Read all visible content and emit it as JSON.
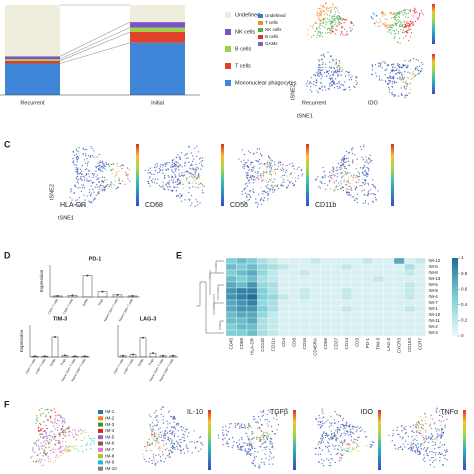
{
  "panel_a": {
    "type": "bar",
    "stacked": true,
    "categories": [
      "Recurrent",
      "Initial"
    ],
    "ylim": [
      0,
      100
    ],
    "series": [
      {
        "name": "Mononuclear phagocytes",
        "color": "#3f86d8",
        "values": [
          35,
          58
        ]
      },
      {
        "name": "T cells",
        "color": "#e0412b",
        "values": [
          3,
          12
        ]
      },
      {
        "name": "B cells",
        "color": "#9bd14a",
        "values": [
          2,
          5
        ]
      },
      {
        "name": "NK cells",
        "color": "#7b52c7",
        "values": [
          3,
          6
        ]
      },
      {
        "name": "Undefined",
        "color": "#efeedd",
        "values": [
          57,
          19
        ]
      }
    ]
  },
  "panel_b": {
    "legend": [
      {
        "name": "Undefined",
        "color": "#3a7fc4"
      },
      {
        "name": "T cells",
        "color": "#f08a2c"
      },
      {
        "name": "NK cells",
        "color": "#4dae4a"
      },
      {
        "name": "B cells",
        "color": "#d8322c"
      },
      {
        "name": "GAMs",
        "color": "#8a5cc2"
      }
    ],
    "plot_labels": [
      "Recurrent",
      "IDO"
    ],
    "x_axis": "tSNE1",
    "y_axis": "tSNE2"
  },
  "panel_c": {
    "label": "C",
    "plots": [
      "HLA-DR",
      "CD68",
      "CD56",
      "CD11b"
    ],
    "x_axis": "tSNE1",
    "y_axis": "tSNE2"
  },
  "panel_d": {
    "label": "D",
    "y_label": "Expression",
    "categories": [
      "CD4+ T cells",
      "CD8+ T cells",
      "GAMs",
      "Tregs",
      "Naive CD4+ T cells",
      "Naive CD8+ T cells"
    ],
    "charts": [
      {
        "title": "PD-1",
        "color": "#444444",
        "values": [
          2,
          3,
          40,
          10,
          4,
          2
        ],
        "ylim": [
          0,
          60
        ]
      },
      {
        "title": "TIM-3",
        "color": "#444444",
        "values": [
          1,
          1,
          25,
          2,
          1,
          1
        ],
        "ylim": [
          0,
          40
        ]
      },
      {
        "title": "LAG-3",
        "color": "#444444",
        "values": [
          1,
          2,
          15,
          3,
          1,
          1
        ],
        "ylim": [
          0,
          25
        ]
      }
    ]
  },
  "panel_e": {
    "label": "E",
    "columns": [
      "CD45",
      "CD68",
      "HLA-DR",
      "CD11b",
      "CD11c",
      "CD4",
      "CD8",
      "CD16",
      "CD45RA",
      "CD56",
      "CD27",
      "CD14",
      "CD3",
      "PD-1",
      "TIM-3",
      "LAG-3",
      "CXCR3",
      "CD163",
      "CCR7"
    ],
    "rows": [
      "rM-12",
      "rM-5",
      "rM-8",
      "rM-13",
      "rM-6",
      "rM-9",
      "rM-4",
      "rM-7",
      "rM-1",
      "rM-10",
      "rM-11",
      "rM-2",
      "rM-3"
    ],
    "values": [
      [
        0.5,
        0.6,
        0.5,
        0.3,
        0.2,
        0.1,
        0.1,
        0.1,
        0.2,
        0.1,
        0.1,
        0.1,
        0.1,
        0.2,
        0.1,
        0.1,
        0.7,
        0.1,
        0.2
      ],
      [
        0.6,
        0.5,
        0.6,
        0.4,
        0.3,
        0.2,
        0.1,
        0.1,
        0.1,
        0.1,
        0.1,
        0.2,
        0.1,
        0.1,
        0.1,
        0.1,
        0.1,
        0.3,
        0.1
      ],
      [
        0.5,
        0.6,
        0.7,
        0.4,
        0.2,
        0.1,
        0.1,
        0.2,
        0.1,
        0.1,
        0.1,
        0.1,
        0.1,
        0.1,
        0.1,
        0.1,
        0.1,
        0.2,
        0.1
      ],
      [
        0.6,
        0.5,
        0.6,
        0.3,
        0.2,
        0.1,
        0.1,
        0.1,
        0.1,
        0.1,
        0.1,
        0.1,
        0.1,
        0.1,
        0.2,
        0.1,
        0.1,
        0.1,
        0.1
      ],
      [
        0.7,
        0.6,
        0.8,
        0.4,
        0.3,
        0.1,
        0.1,
        0.1,
        0.1,
        0.1,
        0.1,
        0.1,
        0.1,
        0.1,
        0.1,
        0.1,
        0.1,
        0.2,
        0.1
      ],
      [
        0.8,
        0.9,
        0.9,
        0.5,
        0.3,
        0.1,
        0.1,
        0.2,
        0.1,
        0.1,
        0.1,
        0.2,
        0.1,
        0.1,
        0.1,
        0.1,
        0.1,
        0.2,
        0.1
      ],
      [
        0.8,
        0.9,
        1.0,
        0.5,
        0.4,
        0.2,
        0.1,
        0.2,
        0.1,
        0.1,
        0.1,
        0.2,
        0.1,
        0.1,
        0.1,
        0.1,
        0.1,
        0.2,
        0.1
      ],
      [
        0.7,
        0.8,
        0.9,
        0.4,
        0.3,
        0.1,
        0.1,
        0.1,
        0.1,
        0.1,
        0.1,
        0.1,
        0.1,
        0.1,
        0.1,
        0.1,
        0.1,
        0.1,
        0.1
      ],
      [
        0.7,
        0.8,
        0.8,
        0.5,
        0.3,
        0.1,
        0.1,
        0.1,
        0.1,
        0.1,
        0.1,
        0.2,
        0.1,
        0.1,
        0.1,
        0.1,
        0.1,
        0.2,
        0.1
      ],
      [
        0.6,
        0.7,
        0.7,
        0.4,
        0.2,
        0.1,
        0.1,
        0.1,
        0.1,
        0.1,
        0.1,
        0.1,
        0.1,
        0.1,
        0.1,
        0.1,
        0.1,
        0.1,
        0.1
      ],
      [
        0.6,
        0.6,
        0.7,
        0.3,
        0.2,
        0.1,
        0.1,
        0.1,
        0.1,
        0.1,
        0.1,
        0.1,
        0.1,
        0.1,
        0.1,
        0.1,
        0.1,
        0.1,
        0.1
      ],
      [
        0.5,
        0.6,
        0.6,
        0.3,
        0.2,
        0.1,
        0.1,
        0.1,
        0.1,
        0.1,
        0.1,
        0.1,
        0.1,
        0.1,
        0.1,
        0.1,
        0.1,
        0.1,
        0.1
      ],
      [
        0.5,
        0.5,
        0.6,
        0.3,
        0.2,
        0.1,
        0.1,
        0.1,
        0.1,
        0.1,
        0.1,
        0.1,
        0.1,
        0.1,
        0.1,
        0.1,
        0.1,
        0.1,
        0.1
      ]
    ],
    "colorbar_ticks": [
      0,
      0.2,
      0.4,
      0.6,
      0.8,
      1
    ],
    "colorbar_lim": [
      0,
      1
    ]
  },
  "panel_f": {
    "label": "F",
    "clusters": [
      {
        "name": "rM-1",
        "color": "#1f77b4"
      },
      {
        "name": "rM-2",
        "color": "#ff7f0e"
      },
      {
        "name": "rM-3",
        "color": "#2ca02c"
      },
      {
        "name": "rM-4",
        "color": "#d62728"
      },
      {
        "name": "rM-5",
        "color": "#9467bd"
      },
      {
        "name": "rM-6",
        "color": "#8c564b"
      },
      {
        "name": "rM-7",
        "color": "#e377c2"
      },
      {
        "name": "rM-8",
        "color": "#bcbd22"
      },
      {
        "name": "rM-9",
        "color": "#17becf"
      },
      {
        "name": "rM-10",
        "color": "#7f7f7f"
      }
    ],
    "plots": [
      "IL-10",
      "TGFβ",
      "IDO",
      "TNFα"
    ]
  }
}
